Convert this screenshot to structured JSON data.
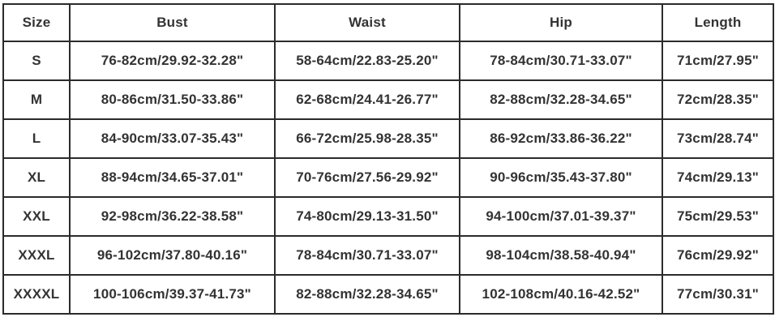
{
  "table": {
    "name": "size-chart",
    "columns": [
      "Size",
      "Bust",
      "Waist",
      "Hip",
      "Length"
    ],
    "rows": [
      [
        "S",
        "76-82cm/29.92-32.28\"",
        "58-64cm/22.83-25.20\"",
        "78-84cm/30.71-33.07\"",
        "71cm/27.95\""
      ],
      [
        "M",
        "80-86cm/31.50-33.86\"",
        "62-68cm/24.41-26.77\"",
        "82-88cm/32.28-34.65\"",
        "72cm/28.35\""
      ],
      [
        "L",
        "84-90cm/33.07-35.43\"",
        "66-72cm/25.98-28.35\"",
        "86-92cm/33.86-36.22\"",
        "73cm/28.74\""
      ],
      [
        "XL",
        "88-94cm/34.65-37.01\"",
        "70-76cm/27.56-29.92\"",
        "90-96cm/35.43-37.80\"",
        "74cm/29.13\""
      ],
      [
        "XXL",
        "92-98cm/36.22-38.58\"",
        "74-80cm/29.13-31.50\"",
        "94-100cm/37.01-39.37\"",
        "75cm/29.53\""
      ],
      [
        "XXXL",
        "96-102cm/37.80-40.16\"",
        "78-84cm/30.71-33.07\"",
        "98-104cm/38.58-40.94\"",
        "76cm/29.92\""
      ],
      [
        "XXXXL",
        "100-106cm/39.37-41.73\"",
        "82-88cm/32.28-34.65\"",
        "102-108cm/40.16-42.52\"",
        "77cm/30.31\""
      ]
    ],
    "colors": {
      "border": "#2b2b2b",
      "text": "#333333",
      "background": "#ffffff"
    }
  }
}
